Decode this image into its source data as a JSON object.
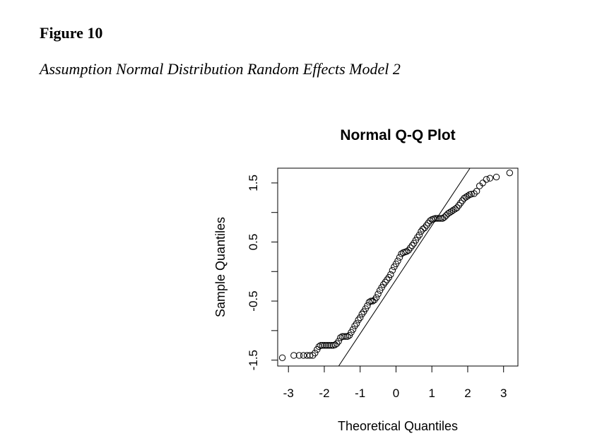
{
  "figure": {
    "label": "Figure 10",
    "title": "Assumption Normal Distribution Random Effects Model 2"
  },
  "chart_data": {
    "type": "scatter",
    "title": "Normal Q-Q Plot",
    "xlabel": "Theoretical Quantiles",
    "ylabel": "Sample Quantiles",
    "x_ticks": [
      -3,
      -2,
      -1,
      0,
      1,
      2,
      3
    ],
    "y_ticks": [
      -1.5,
      -0.5,
      0.5,
      1.5
    ],
    "y_tick_labels": [
      "-1.5",
      "-0.5",
      "0.5",
      "1.5"
    ],
    "xlim": [
      -3.3,
      3.4
    ],
    "ylim": [
      -1.6,
      1.75
    ],
    "grid": false,
    "reference_line": {
      "x1": -2.2,
      "y1": -2.15,
      "x2": 2.5,
      "y2": 2.15
    },
    "points": [
      [
        -3.17,
        -1.46
      ],
      [
        -2.85,
        -1.42
      ],
      [
        -2.7,
        -1.42
      ],
      [
        -2.58,
        -1.42
      ],
      [
        -2.48,
        -1.42
      ],
      [
        -2.4,
        -1.42
      ],
      [
        -2.32,
        -1.42
      ],
      [
        -2.26,
        -1.38
      ],
      [
        -2.2,
        -1.32
      ],
      [
        -2.15,
        -1.27
      ],
      [
        -2.1,
        -1.25
      ],
      [
        -2.05,
        -1.25
      ],
      [
        -2.0,
        -1.25
      ],
      [
        -1.95,
        -1.25
      ],
      [
        -1.9,
        -1.25
      ],
      [
        -1.85,
        -1.25
      ],
      [
        -1.8,
        -1.25
      ],
      [
        -1.75,
        -1.25
      ],
      [
        -1.7,
        -1.24
      ],
      [
        -1.65,
        -1.22
      ],
      [
        -1.6,
        -1.18
      ],
      [
        -1.55,
        -1.12
      ],
      [
        -1.5,
        -1.1
      ],
      [
        -1.45,
        -1.1
      ],
      [
        -1.4,
        -1.1
      ],
      [
        -1.35,
        -1.1
      ],
      [
        -1.3,
        -1.08
      ],
      [
        -1.25,
        -1.03
      ],
      [
        -1.2,
        -0.98
      ],
      [
        -1.15,
        -0.92
      ],
      [
        -1.1,
        -0.88
      ],
      [
        -1.05,
        -0.82
      ],
      [
        -1.0,
        -0.78
      ],
      [
        -0.95,
        -0.72
      ],
      [
        -0.9,
        -0.68
      ],
      [
        -0.85,
        -0.63
      ],
      [
        -0.8,
        -0.58
      ],
      [
        -0.75,
        -0.52
      ],
      [
        -0.7,
        -0.5
      ],
      [
        -0.65,
        -0.5
      ],
      [
        -0.6,
        -0.48
      ],
      [
        -0.55,
        -0.44
      ],
      [
        -0.5,
        -0.38
      ],
      [
        -0.45,
        -0.32
      ],
      [
        -0.4,
        -0.27
      ],
      [
        -0.35,
        -0.22
      ],
      [
        -0.3,
        -0.18
      ],
      [
        -0.25,
        -0.14
      ],
      [
        -0.2,
        -0.1
      ],
      [
        -0.15,
        -0.05
      ],
      [
        -0.1,
        0.02
      ],
      [
        -0.05,
        0.08
      ],
      [
        0.0,
        0.13
      ],
      [
        0.05,
        0.18
      ],
      [
        0.1,
        0.24
      ],
      [
        0.15,
        0.3
      ],
      [
        0.2,
        0.32
      ],
      [
        0.25,
        0.33
      ],
      [
        0.3,
        0.34
      ],
      [
        0.35,
        0.36
      ],
      [
        0.4,
        0.4
      ],
      [
        0.45,
        0.44
      ],
      [
        0.5,
        0.48
      ],
      [
        0.55,
        0.53
      ],
      [
        0.6,
        0.58
      ],
      [
        0.65,
        0.62
      ],
      [
        0.7,
        0.68
      ],
      [
        0.75,
        0.72
      ],
      [
        0.8,
        0.74
      ],
      [
        0.85,
        0.78
      ],
      [
        0.9,
        0.82
      ],
      [
        0.95,
        0.86
      ],
      [
        1.0,
        0.88
      ],
      [
        1.05,
        0.89
      ],
      [
        1.1,
        0.9
      ],
      [
        1.15,
        0.9
      ],
      [
        1.2,
        0.9
      ],
      [
        1.25,
        0.9
      ],
      [
        1.3,
        0.9
      ],
      [
        1.35,
        0.92
      ],
      [
        1.4,
        0.95
      ],
      [
        1.45,
        0.98
      ],
      [
        1.5,
        1.0
      ],
      [
        1.55,
        1.02
      ],
      [
        1.6,
        1.04
      ],
      [
        1.65,
        1.06
      ],
      [
        1.7,
        1.08
      ],
      [
        1.75,
        1.12
      ],
      [
        1.8,
        1.16
      ],
      [
        1.85,
        1.2
      ],
      [
        1.9,
        1.24
      ],
      [
        1.95,
        1.26
      ],
      [
        2.0,
        1.28
      ],
      [
        2.05,
        1.3
      ],
      [
        2.1,
        1.31
      ],
      [
        2.18,
        1.32
      ],
      [
        2.25,
        1.36
      ],
      [
        2.33,
        1.45
      ],
      [
        2.42,
        1.5
      ],
      [
        2.52,
        1.56
      ],
      [
        2.62,
        1.58
      ],
      [
        2.8,
        1.6
      ],
      [
        3.17,
        1.67
      ]
    ]
  }
}
